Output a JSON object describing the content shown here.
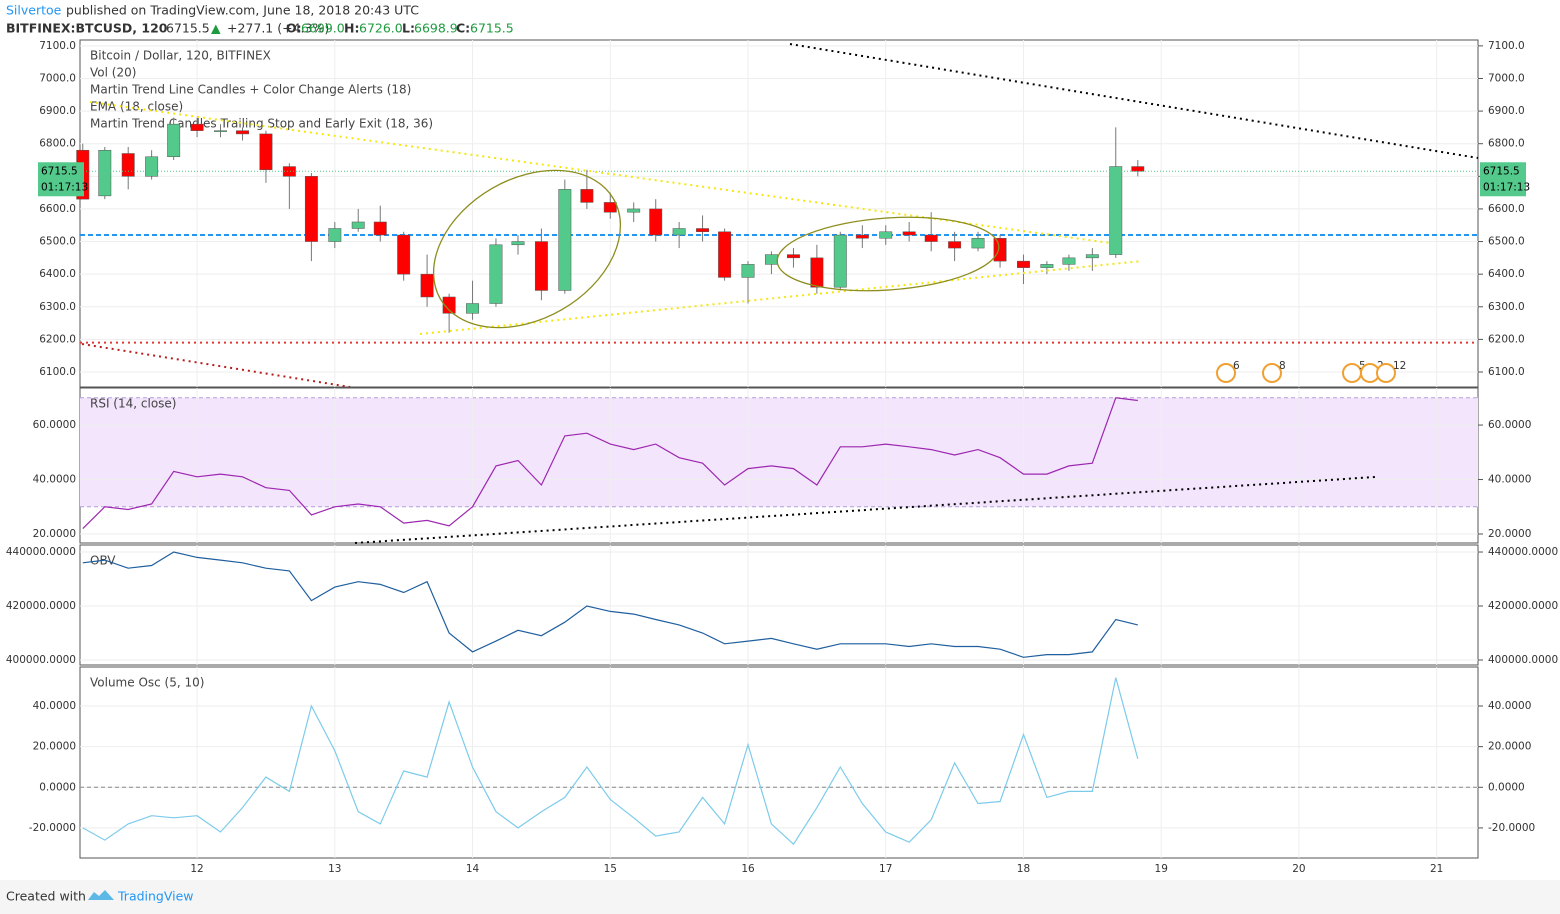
{
  "header": {
    "author": "Silvertoe",
    "published": "published on TradingView.com, June 18, 2018 20:43 UTC",
    "symbol": "BITFINEX:BTCUSD, 120",
    "last": "6715.5",
    "arrow": "▲",
    "change": "+277.1 (+4.3%)",
    "o_label": "O:",
    "o": "6699.0",
    "h_label": "H:",
    "h": "6726.0",
    "l_label": "L:",
    "l": "6698.9",
    "c_label": "C:",
    "c": "6715.5"
  },
  "footer": {
    "created": "Created with",
    "brand": "TradingView"
  },
  "chart_data": [
    {
      "type": "candlestick",
      "title": "Bitcoin / Dollar, 120, BITFINEX",
      "legend": [
        "Vol (20)",
        "Martin Trend Line Candles + Color Change Alerts (18)",
        "EMA (18, close)",
        "Martin Trend Candles Trailing Stop and Early Exit (18, 36)"
      ],
      "price_label": "6715.5",
      "countdown": "01:17:13",
      "xlim": [
        11.15,
        21.3
      ],
      "xticks": [
        12,
        13,
        14,
        15,
        16,
        17,
        18,
        19,
        20,
        21
      ],
      "ylim": [
        6054,
        7118
      ],
      "yticks": [
        {
          "value": 6100,
          "label": "6100.0"
        },
        {
          "value": 6200,
          "label": "6200.0"
        },
        {
          "value": 6300,
          "label": "6300.0"
        },
        {
          "value": 6400,
          "label": "6400.0"
        },
        {
          "value": 6500,
          "label": "6500.0"
        },
        {
          "value": 6600,
          "label": "6600.0"
        },
        {
          "value": 6700,
          "label": "6700.0"
        },
        {
          "value": 6800,
          "label": "6800.0"
        },
        {
          "value": 6900,
          "label": "6900.0"
        },
        {
          "value": 7000,
          "label": "7000.0"
        },
        {
          "value": 7100,
          "label": "7100.0"
        }
      ],
      "up_color": "#53c98b",
      "down_color": "#ff0000",
      "levels": [
        {
          "value": 6520,
          "color": "#2196f3"
        },
        {
          "value": 6190,
          "color": "#e53935"
        }
      ],
      "events": [
        "6",
        "8",
        "5",
        "2",
        "12"
      ],
      "x": [
        11.17,
        11.33,
        11.5,
        11.67,
        11.83,
        12.0,
        12.17,
        12.33,
        12.5,
        12.67,
        12.83,
        13.0,
        13.17,
        13.33,
        13.5,
        13.67,
        13.83,
        14.0,
        14.17,
        14.33,
        14.5,
        14.67,
        14.83,
        15.0,
        15.17,
        15.33,
        15.5,
        15.67,
        15.83,
        16.0,
        16.17,
        16.33,
        16.5,
        16.67,
        16.83,
        17.0,
        17.17,
        17.33,
        17.5,
        17.67,
        17.83,
        18.0,
        18.17,
        18.33,
        18.5,
        18.67,
        18.83
      ],
      "open": [
        6780,
        6640,
        6770,
        6700,
        6760,
        6860,
        6840,
        6840,
        6830,
        6730,
        6700,
        6500,
        6540,
        6560,
        6520,
        6400,
        6330,
        6280,
        6310,
        6490,
        6500,
        6350,
        6660,
        6620,
        6590,
        6600,
        6520,
        6540,
        6530,
        6390,
        6430,
        6460,
        6450,
        6360,
        6520,
        6510,
        6530,
        6520,
        6500,
        6480,
        6510,
        6440,
        6420,
        6430,
        6450,
        6460,
        6730
      ],
      "high": [
        6800,
        6790,
        6790,
        6780,
        6880,
        6880,
        6860,
        6850,
        6840,
        6740,
        6710,
        6560,
        6600,
        6610,
        6530,
        6460,
        6340,
        6380,
        6510,
        6520,
        6540,
        6690,
        6720,
        6650,
        6620,
        6630,
        6560,
        6580,
        6540,
        6440,
        6470,
        6480,
        6490,
        6530,
        6550,
        6550,
        6560,
        6590,
        6530,
        6530,
        6520,
        6460,
        6440,
        6460,
        6480,
        6850,
        6750
      ],
      "low": [
        6630,
        6630,
        6660,
        6690,
        6750,
        6820,
        6820,
        6810,
        6680,
        6600,
        6440,
        6480,
        6530,
        6500,
        6380,
        6300,
        6220,
        6260,
        6300,
        6460,
        6320,
        6340,
        6600,
        6570,
        6560,
        6500,
        6480,
        6500,
        6380,
        6310,
        6400,
        6420,
        6340,
        6350,
        6480,
        6490,
        6500,
        6470,
        6440,
        6470,
        6420,
        6370,
        6400,
        6410,
        6410,
        6450,
        6700
      ],
      "close": [
        6630,
        6780,
        6700,
        6760,
        6860,
        6840,
        6840,
        6830,
        6720,
        6700,
        6500,
        6540,
        6560,
        6520,
        6400,
        6330,
        6280,
        6310,
        6490,
        6500,
        6350,
        6660,
        6620,
        6590,
        6600,
        6520,
        6540,
        6530,
        6390,
        6430,
        6460,
        6450,
        6360,
        6520,
        6510,
        6530,
        6520,
        6500,
        6480,
        6510,
        6440,
        6420,
        6430,
        6450,
        6460,
        6730,
        6715.5
      ]
    },
    {
      "type": "line",
      "title": "RSI (14, close)",
      "ylim": [
        16.7,
        73.6
      ],
      "yticks": [
        {
          "value": 20,
          "label": "20.0000"
        },
        {
          "value": 40,
          "label": "40.0000"
        },
        {
          "value": 60,
          "label": "60.0000"
        }
      ],
      "band": [
        30,
        70
      ],
      "band_color": "#f3e5fc",
      "series": [
        {
          "name": "RSI",
          "color": "#9c27b0",
          "values": [
            22,
            30,
            29,
            31,
            43,
            41,
            42,
            41,
            37,
            36,
            27,
            30,
            31,
            30,
            24,
            25,
            23,
            30,
            45,
            47,
            38,
            56,
            57,
            53,
            51,
            53,
            48,
            46,
            38,
            44,
            45,
            44,
            38,
            52,
            52,
            53,
            52,
            51,
            49,
            51,
            48,
            42,
            42,
            45,
            46,
            70,
            69
          ]
        }
      ]
    },
    {
      "type": "line",
      "title": "OBV",
      "ylim": [
        398150,
        442600
      ],
      "yticks": [
        {
          "value": 400000,
          "label": "400000.0000"
        },
        {
          "value": 420000,
          "label": "420000.0000"
        },
        {
          "value": 440000,
          "label": "440000.0000"
        }
      ],
      "series": [
        {
          "name": "OBV",
          "color": "#1f5f9e",
          "values": [
            436000,
            437000,
            434000,
            435000,
            440000,
            438000,
            437000,
            436000,
            434000,
            433000,
            422000,
            427000,
            429000,
            428000,
            425000,
            429000,
            410000,
            403000,
            407000,
            411000,
            409000,
            414000,
            420000,
            418000,
            417000,
            415000,
            413000,
            410000,
            406000,
            407000,
            408000,
            406000,
            404000,
            406000,
            406000,
            406000,
            405000,
            406000,
            405000,
            405000,
            404000,
            401000,
            402000,
            402000,
            403000,
            415000,
            413000
          ]
        }
      ]
    },
    {
      "type": "line",
      "title": "Volume Osc (5, 10)",
      "ylim": [
        -34.8,
        59.2
      ],
      "yticks": [
        {
          "value": -20,
          "label": "-20.0000"
        },
        {
          "value": 0,
          "label": "0.0000"
        },
        {
          "value": 20,
          "label": "20.0000"
        },
        {
          "value": 40,
          "label": "40.0000"
        }
      ],
      "zero_line": 0,
      "series": [
        {
          "name": "Volume Osc",
          "color": "#7ccbea",
          "values": [
            -20,
            -26,
            -18,
            -14,
            -15,
            -14,
            -22,
            -10,
            5,
            -2,
            40,
            18,
            -12,
            -18,
            8,
            5,
            42,
            10,
            -12,
            -20,
            -12,
            -5,
            10,
            -6,
            -15,
            -24,
            -22,
            -5,
            -18,
            21,
            -18,
            -28,
            -10,
            10,
            -8,
            -22,
            -27,
            -16,
            12,
            -8,
            -7,
            26,
            -5,
            -2,
            -2,
            54,
            14
          ]
        }
      ]
    }
  ]
}
